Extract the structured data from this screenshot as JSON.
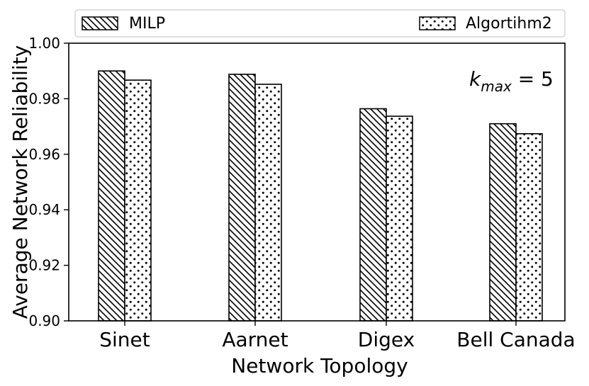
{
  "chart_data": {
    "type": "bar",
    "title": "",
    "xlabel": "Network Topology",
    "ylabel": "Average Network Reliability",
    "categories": [
      "Sinet",
      "Aarnet",
      "Digex",
      "Bell Canada"
    ],
    "series": [
      {
        "name": "MILP",
        "values": [
          0.99,
          0.9888,
          0.9764,
          0.971
        ]
      },
      {
        "name": "Algortihm2",
        "values": [
          0.9867,
          0.9852,
          0.9737,
          0.9674
        ]
      }
    ],
    "ylim": [
      0.9,
      1.0
    ],
    "yticks": [
      "0.90",
      "0.92",
      "0.94",
      "0.96",
      "0.98",
      "1.00"
    ],
    "grid": false,
    "legend_placement": "top, above plot",
    "annotation": {
      "base": "k",
      "sub": "max",
      "rest": " = 5"
    },
    "colors": {
      "bar_fill": "#ffffff",
      "bar_edge": "#000000",
      "hatch": "#000000"
    }
  }
}
